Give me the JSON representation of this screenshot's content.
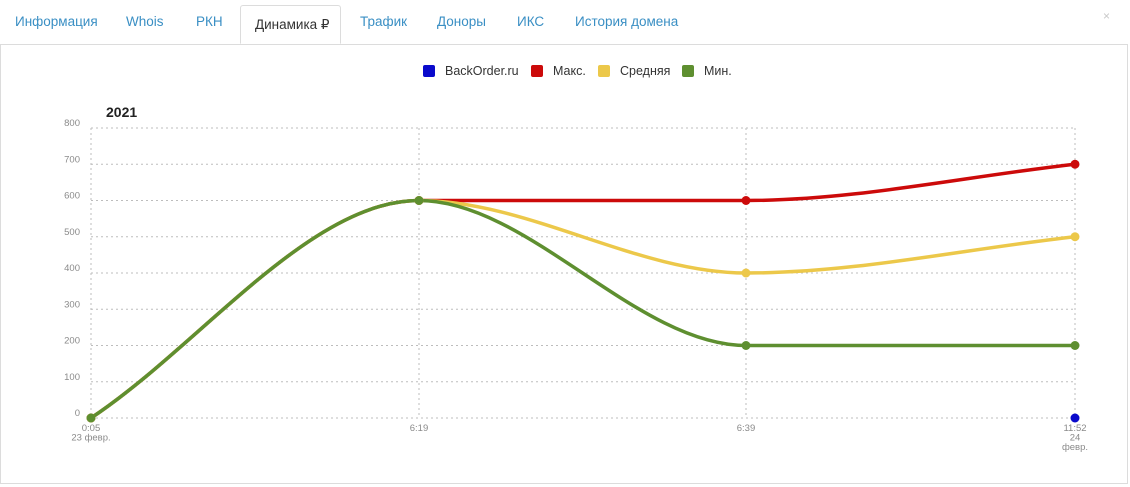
{
  "tabs": [
    {
      "label": "Информация",
      "active": false
    },
    {
      "label": "Whois",
      "active": false
    },
    {
      "label": "РКН",
      "active": false
    },
    {
      "label": "Динамика ₽",
      "active": true
    },
    {
      "label": "Трафик",
      "active": false
    },
    {
      "label": "Доноры",
      "active": false
    },
    {
      "label": "ИКС",
      "active": false
    },
    {
      "label": "История домена",
      "active": false
    }
  ],
  "close_label": "×",
  "chart_data": {
    "type": "line",
    "title": "2021",
    "x": [
      "0:05",
      "6:19",
      "6:39",
      "11:52"
    ],
    "x_tick_labels": [
      [
        "0:05",
        "23 февр."
      ],
      [
        "6:19"
      ],
      [
        "6:39"
      ],
      [
        "11:52",
        "24",
        "февр."
      ]
    ],
    "y_ticks": [
      0,
      100,
      200,
      300,
      400,
      500,
      600,
      700,
      800
    ],
    "ylim": [
      0,
      800
    ],
    "grid": true,
    "legend_position": "top-center",
    "series": [
      {
        "name": "BackOrder.ru",
        "color": "#0a0acc",
        "values": [
          null,
          null,
          null,
          0
        ]
      },
      {
        "name": "Макс.",
        "color": "#cc0a0a",
        "values": [
          0,
          600,
          600,
          700
        ]
      },
      {
        "name": "Средняя",
        "color": "#ecc84a",
        "values": [
          0,
          600,
          400,
          500
        ]
      },
      {
        "name": "Мин.",
        "color": "#5e8f30",
        "values": [
          0,
          600,
          200,
          200
        ]
      }
    ]
  }
}
